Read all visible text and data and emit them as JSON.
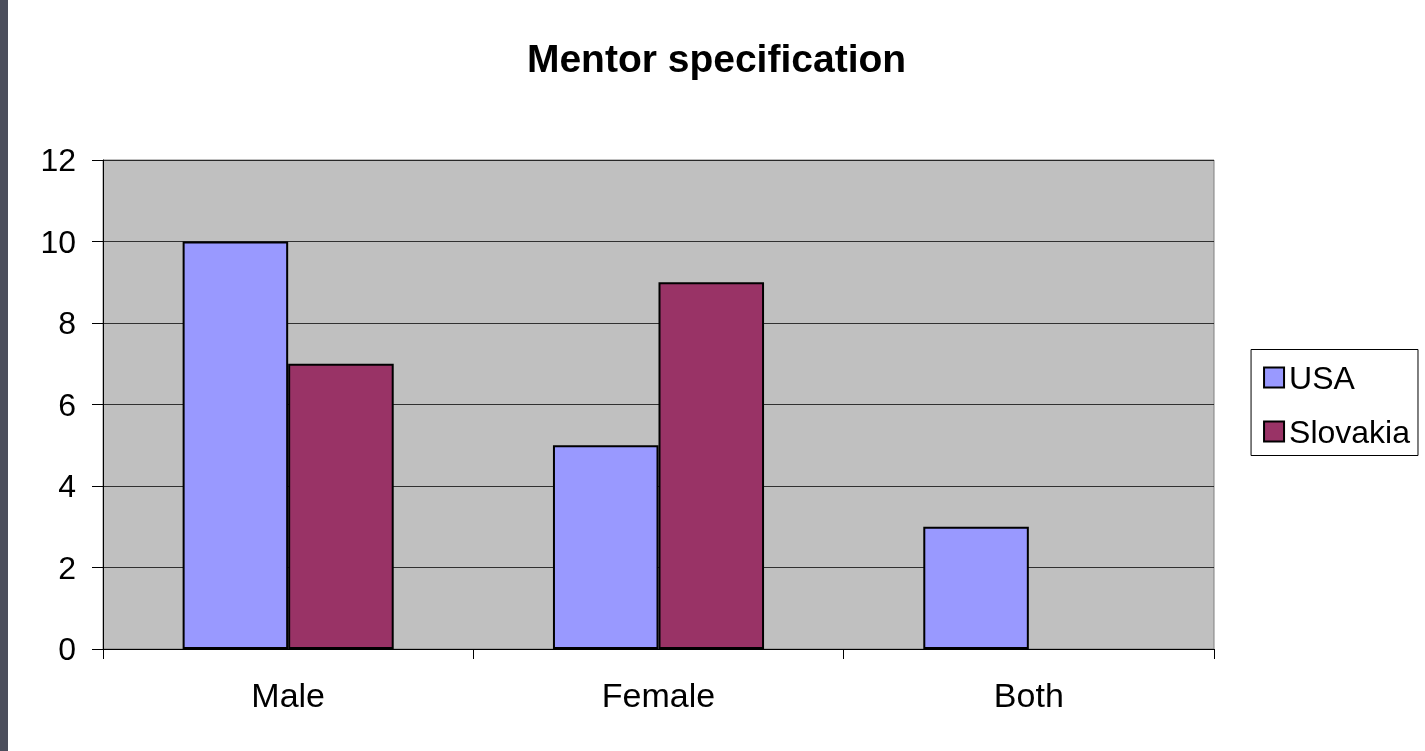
{
  "chart_data": {
    "type": "bar",
    "title": "Mentor specification",
    "categories": [
      "Male",
      "Female",
      "Both"
    ],
    "series": [
      {
        "name": "USA",
        "color": "#9999ff",
        "values": [
          10,
          5,
          3
        ]
      },
      {
        "name": "Slovakia",
        "color": "#993366",
        "values": [
          7,
          9,
          null
        ]
      }
    ],
    "ylim": [
      0,
      12
    ],
    "yticks": [
      0,
      2,
      4,
      6,
      8,
      10,
      12
    ],
    "grid": "y",
    "legend": "right"
  }
}
